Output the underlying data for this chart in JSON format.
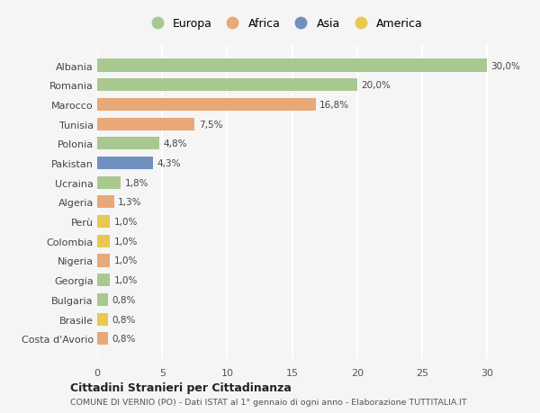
{
  "countries": [
    "Albania",
    "Romania",
    "Marocco",
    "Tunisia",
    "Polonia",
    "Pakistan",
    "Ucraina",
    "Algeria",
    "Perù",
    "Colombia",
    "Nigeria",
    "Georgia",
    "Bulgaria",
    "Brasile",
    "Costa d'Avorio"
  ],
  "values": [
    30.0,
    20.0,
    16.8,
    7.5,
    4.8,
    4.3,
    1.8,
    1.3,
    1.0,
    1.0,
    1.0,
    1.0,
    0.8,
    0.8,
    0.8
  ],
  "labels": [
    "30,0%",
    "20,0%",
    "16,8%",
    "7,5%",
    "4,8%",
    "4,3%",
    "1,8%",
    "1,3%",
    "1,0%",
    "1,0%",
    "1,0%",
    "1,0%",
    "0,8%",
    "0,8%",
    "0,8%"
  ],
  "continent": [
    "Europa",
    "Europa",
    "Africa",
    "Africa",
    "Europa",
    "Asia",
    "Europa",
    "Africa",
    "America",
    "America",
    "Africa",
    "Europa",
    "Europa",
    "America",
    "Africa"
  ],
  "colors": {
    "Europa": "#a8c890",
    "Africa": "#e8a878",
    "Asia": "#7090c0",
    "America": "#e8c850"
  },
  "legend_order": [
    "Europa",
    "Africa",
    "Asia",
    "America"
  ],
  "title_bold": "Cittadini Stranieri per Cittadinanza",
  "title_sub": "COMUNE DI VERNIO (PO) - Dati ISTAT al 1° gennaio di ogni anno - Elaborazione TUTTITALIA.IT",
  "xlim": [
    0,
    32
  ],
  "xticks": [
    0,
    5,
    10,
    15,
    20,
    25,
    30
  ],
  "bg_color": "#f5f5f5",
  "grid_color": "#ffffff",
  "bar_height": 0.65
}
